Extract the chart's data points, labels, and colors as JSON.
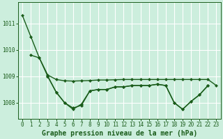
{
  "background_color": "#cceedd",
  "grid_color": "#aaddcc",
  "line_color": "#1a5c1a",
  "xlabel": "Graphe pression niveau de la mer (hPa)",
  "xlabel_fontsize": 7,
  "tick_fontsize": 5.5,
  "yticks": [
    1008,
    1009,
    1010,
    1011
  ],
  "xticks": [
    0,
    1,
    2,
    3,
    4,
    5,
    6,
    7,
    8,
    9,
    10,
    11,
    12,
    13,
    14,
    15,
    16,
    17,
    18,
    19,
    20,
    21,
    22,
    23
  ],
  "xlim": [
    -0.5,
    23.5
  ],
  "ylim": [
    1007.4,
    1011.8
  ],
  "linewidth": 1.0,
  "marker": "D",
  "markersize": 2.2,
  "s1": [
    1011.3,
    1010.5,
    1009.7,
    1009.0,
    1008.4,
    1008.0,
    1007.8,
    1007.9,
    1008.45,
    1008.5,
    1008.5,
    1008.6,
    1008.6,
    1008.65,
    1008.65,
    1008.65,
    1008.7,
    1008.65,
    1008.0,
    1007.75,
    1008.05,
    1008.3,
    1008.65,
    null
  ],
  "s2": [
    null,
    1009.8,
    1009.7,
    1009.05,
    1008.88,
    1008.83,
    1008.82,
    1008.83,
    1008.84,
    1008.86,
    1008.86,
    1008.87,
    1008.88,
    1008.88,
    1008.88,
    1008.88,
    1008.88,
    1008.88,
    1008.88,
    1008.88,
    1008.88,
    1008.88,
    1008.88,
    1008.65
  ],
  "s3": [
    null,
    null,
    null,
    1009.0,
    1008.4,
    1008.0,
    1007.75,
    1007.95,
    1008.45,
    1008.5,
    1008.5,
    1008.6,
    1008.6,
    1008.65,
    1008.65,
    1008.65,
    1008.7,
    1008.65,
    1008.0,
    1007.75,
    1008.05,
    1008.3,
    1008.65,
    null
  ]
}
